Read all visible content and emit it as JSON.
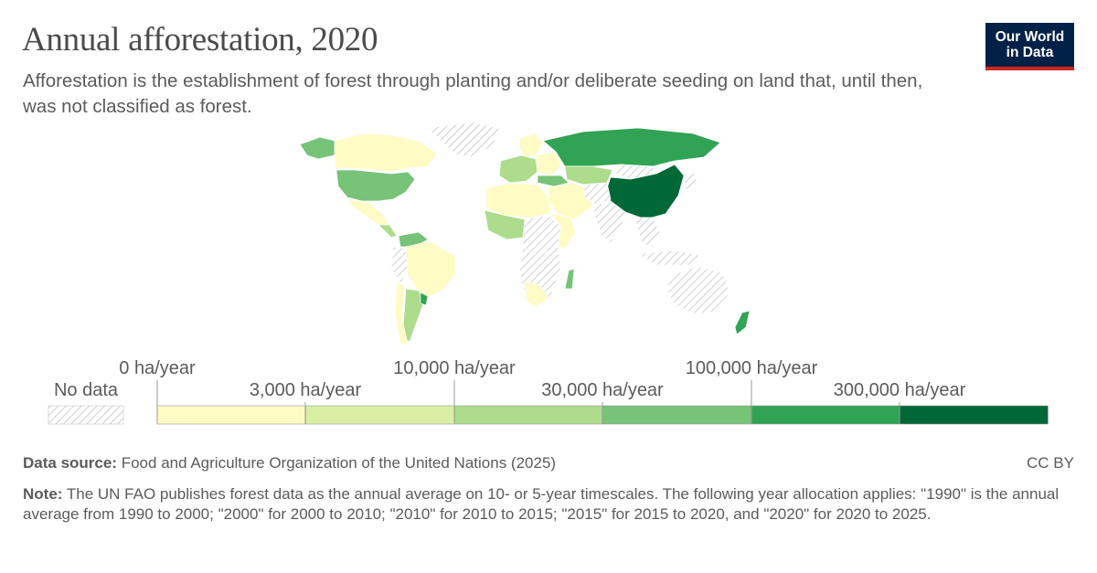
{
  "header": {
    "title": "Annual afforestation, 2020",
    "subtitle": "Afforestation is the establishment of forest through planting and/or deliberate seeding on land that, until then, was not classified as forest."
  },
  "logo": {
    "line1": "Our World",
    "line2": "in Data",
    "bg_color": "#002147",
    "accent_color": "#ce261e"
  },
  "legend": {
    "no_data_label": "No data",
    "tick_labels_upper": [
      "0 ha/year",
      "10,000 ha/year",
      "100,000 ha/year"
    ],
    "tick_labels_lower": [
      "3,000 ha/year",
      "30,000 ha/year",
      "300,000 ha/year"
    ],
    "colors": [
      "#fefbc5",
      "#d9efa3",
      "#acdc8c",
      "#77c378",
      "#31a354",
      "#006837"
    ]
  },
  "map": {
    "colored_regions": [
      {
        "name": "China",
        "color": "#006837"
      },
      {
        "name": "Russia",
        "color": "#31a354"
      },
      {
        "name": "United States",
        "color": "#77c378"
      },
      {
        "name": "Kazakhstan",
        "color": "#acdc8c"
      },
      {
        "name": "Canada",
        "color": "#fefbc5"
      },
      {
        "name": "Brazil",
        "color": "#fefbc5"
      },
      {
        "name": "Argentina",
        "color": "#acdc8c"
      },
      {
        "name": "Uruguay",
        "color": "#31a354"
      }
    ]
  },
  "footer": {
    "source_label": "Data source:",
    "source_text": "Food and Agriculture Organization of the United Nations (2025)",
    "license": "CC BY",
    "note_label": "Note:",
    "note_text": "The UN FAO publishes forest data as the annual average on 10- or 5-year timescales. The following year allocation applies: \"1990\" is the annual average from 1990 to 2000; \"2000\" for 2000 to 2010; \"2010\" for 2010 to 2015; \"2015\" for 2015 to 2020, and \"2020\" for 2020 to 2025."
  }
}
